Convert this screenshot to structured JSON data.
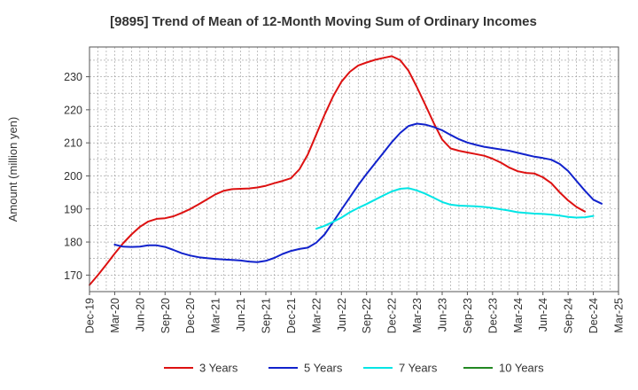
{
  "chart_data": {
    "type": "line",
    "title": "[9895]  Trend of Mean of 12-Month Moving Sum of Ordinary Incomes",
    "xlabel": "",
    "ylabel": "Amount (million yen)",
    "ylim": [
      165,
      239
    ],
    "yticks": [
      170,
      180,
      190,
      200,
      210,
      220,
      230
    ],
    "xticks": [
      "Dec-19",
      "Mar-20",
      "Jun-20",
      "Sep-20",
      "Dec-20",
      "Mar-21",
      "Jun-21",
      "Sep-21",
      "Dec-21",
      "Mar-22",
      "Jun-22",
      "Sep-22",
      "Dec-22",
      "Mar-23",
      "Jun-23",
      "Sep-23",
      "Dec-23",
      "Mar-24",
      "Jun-24",
      "Sep-24",
      "Dec-24",
      "Mar-25"
    ],
    "grid": true,
    "legend_position": "bottom",
    "series": [
      {
        "name": "3 Years",
        "color": "#dd1111",
        "start_index": 0,
        "values": [
          167.0,
          170.0,
          173.2,
          176.5,
          179.6,
          182.3,
          184.6,
          186.2,
          187.0,
          187.2,
          187.8,
          188.8,
          190.0,
          191.4,
          192.9,
          194.4,
          195.5,
          196.0,
          196.1,
          196.2,
          196.5,
          197.0,
          197.8,
          198.5,
          199.3,
          202.0,
          206.5,
          212.5,
          218.5,
          224.0,
          228.5,
          231.5,
          233.4,
          234.3,
          235.1,
          235.7,
          236.2,
          235.0,
          231.8,
          226.8,
          221.5,
          216.0,
          211.0,
          208.3,
          207.6,
          207.1,
          206.6,
          206.1,
          205.2,
          204.0,
          202.5,
          201.4,
          200.9,
          200.7,
          199.6,
          197.8,
          195.0,
          192.6,
          190.6,
          189.2
        ]
      },
      {
        "name": "5 Years",
        "color": "#1122cc",
        "start_index": 3,
        "values": [
          179.2,
          178.6,
          178.5,
          178.6,
          179.0,
          179.0,
          178.5,
          177.6,
          176.6,
          175.9,
          175.4,
          175.1,
          174.9,
          174.7,
          174.6,
          174.4,
          174.1,
          173.9,
          174.3,
          175.2,
          176.4,
          177.3,
          177.9,
          178.3,
          179.8,
          182.3,
          186.0,
          189.8,
          193.5,
          197.2,
          200.6,
          203.8,
          207.0,
          210.2,
          213.0,
          215.1,
          215.8,
          215.5,
          214.8,
          213.8,
          212.4,
          211.1,
          210.1,
          209.4,
          208.8,
          208.4,
          208.0,
          207.6,
          207.0,
          206.4,
          205.8,
          205.4,
          204.9,
          203.6,
          201.5,
          198.5,
          195.5,
          192.8,
          191.6
        ]
      },
      {
        "name": "7 Years",
        "color": "#00e5e5",
        "start_index": 27,
        "values": [
          184.0,
          184.9,
          186.1,
          187.4,
          189.0,
          190.3,
          191.5,
          192.8,
          194.1,
          195.3,
          196.1,
          196.3,
          195.6,
          194.6,
          193.4,
          192.1,
          191.3,
          191.0,
          190.9,
          190.8,
          190.6,
          190.3,
          189.9,
          189.5,
          189.0,
          188.8,
          188.6,
          188.5,
          188.3,
          188.0,
          187.6,
          187.4,
          187.5,
          187.9
        ]
      },
      {
        "name": "10 Years",
        "color": "#228822",
        "start_index": 0,
        "values": []
      }
    ]
  }
}
